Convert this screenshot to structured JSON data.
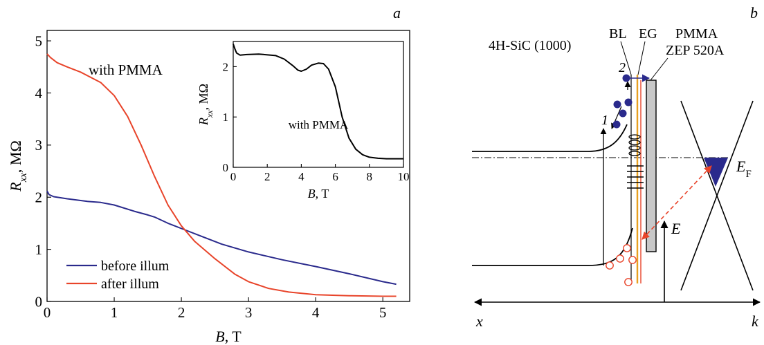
{
  "colors": {
    "before": "#2a2a8c",
    "after": "#e8442a",
    "black": "#000000",
    "electron": "#2a2a8c",
    "hole": "#e8442a",
    "pmma": "#c8c8c8",
    "eg_line": "#e8a020"
  },
  "chart_data": [
    {
      "type": "line",
      "panel_label": "a",
      "xlabel": "B, T",
      "ylabel": "R_xx, MΩ",
      "xlim": [
        0,
        5.4
      ],
      "ylim": [
        0,
        5.2
      ],
      "xticks": [
        0,
        1,
        2,
        3,
        4,
        5
      ],
      "yticks": [
        0,
        1,
        2,
        3,
        4,
        5
      ],
      "annotation": "with PMMA",
      "legend_position": "bottom-left",
      "series": [
        {
          "name": "before illum",
          "color": "#2a2a8c",
          "x": [
            0,
            0.03,
            0.1,
            0.3,
            0.6,
            0.8,
            1.0,
            1.3,
            1.5,
            1.6,
            1.8,
            2.0,
            2.3,
            2.6,
            3.0,
            3.5,
            4.0,
            4.5,
            5.0,
            5.2
          ],
          "y": [
            2.12,
            2.05,
            2.01,
            1.97,
            1.92,
            1.9,
            1.85,
            1.73,
            1.66,
            1.62,
            1.5,
            1.4,
            1.25,
            1.1,
            0.95,
            0.8,
            0.67,
            0.53,
            0.38,
            0.33
          ]
        },
        {
          "name": "after illum",
          "color": "#e8442a",
          "x": [
            0,
            0.05,
            0.15,
            0.3,
            0.5,
            0.8,
            1.0,
            1.2,
            1.4,
            1.6,
            1.8,
            2.0,
            2.2,
            2.5,
            2.8,
            3.0,
            3.3,
            3.6,
            4.0,
            4.5,
            5.0,
            5.2
          ],
          "y": [
            4.75,
            4.68,
            4.58,
            4.5,
            4.4,
            4.2,
            3.95,
            3.55,
            3.0,
            2.4,
            1.85,
            1.45,
            1.15,
            0.82,
            0.52,
            0.38,
            0.25,
            0.18,
            0.13,
            0.11,
            0.1,
            0.1
          ]
        }
      ],
      "inset": {
        "type": "line",
        "xlabel": "B, T",
        "ylabel": "R_xx, MΩ",
        "annotation": "with PMMA",
        "xlim": [
          0,
          10
        ],
        "ylim": [
          0,
          2.5
        ],
        "xticks": [
          0,
          2,
          4,
          6,
          8,
          10
        ],
        "yticks": [
          0,
          1,
          2
        ],
        "series": [
          {
            "color": "#000000",
            "x": [
              0,
              0.1,
              0.2,
              0.4,
              0.8,
              1.5,
              2.5,
              3.0,
              3.5,
              3.8,
              4.0,
              4.3,
              4.6,
              5.0,
              5.3,
              5.6,
              6.0,
              6.4,
              6.8,
              7.2,
              7.6,
              8.0,
              8.5,
              9.0,
              9.5,
              10.0
            ],
            "y": [
              2.45,
              2.35,
              2.27,
              2.23,
              2.24,
              2.25,
              2.22,
              2.15,
              2.02,
              1.93,
              1.91,
              1.95,
              2.03,
              2.07,
              2.06,
              1.95,
              1.6,
              1.0,
              0.58,
              0.36,
              0.25,
              0.2,
              0.18,
              0.17,
              0.17,
              0.17
            ]
          }
        ]
      }
    }
  ],
  "diagram": {
    "panel_label": "b",
    "labels": {
      "substrate": "4H-SiC (1000)",
      "bl": "BL",
      "eg": "EG",
      "pmma": "PMMA",
      "zep": "ZEP 520A",
      "transition_1": "1",
      "transition_2": "2",
      "energy_axis": "E",
      "fermi": "E",
      "fermi_sub": "F",
      "axis_x": "x",
      "axis_k": "k"
    }
  }
}
